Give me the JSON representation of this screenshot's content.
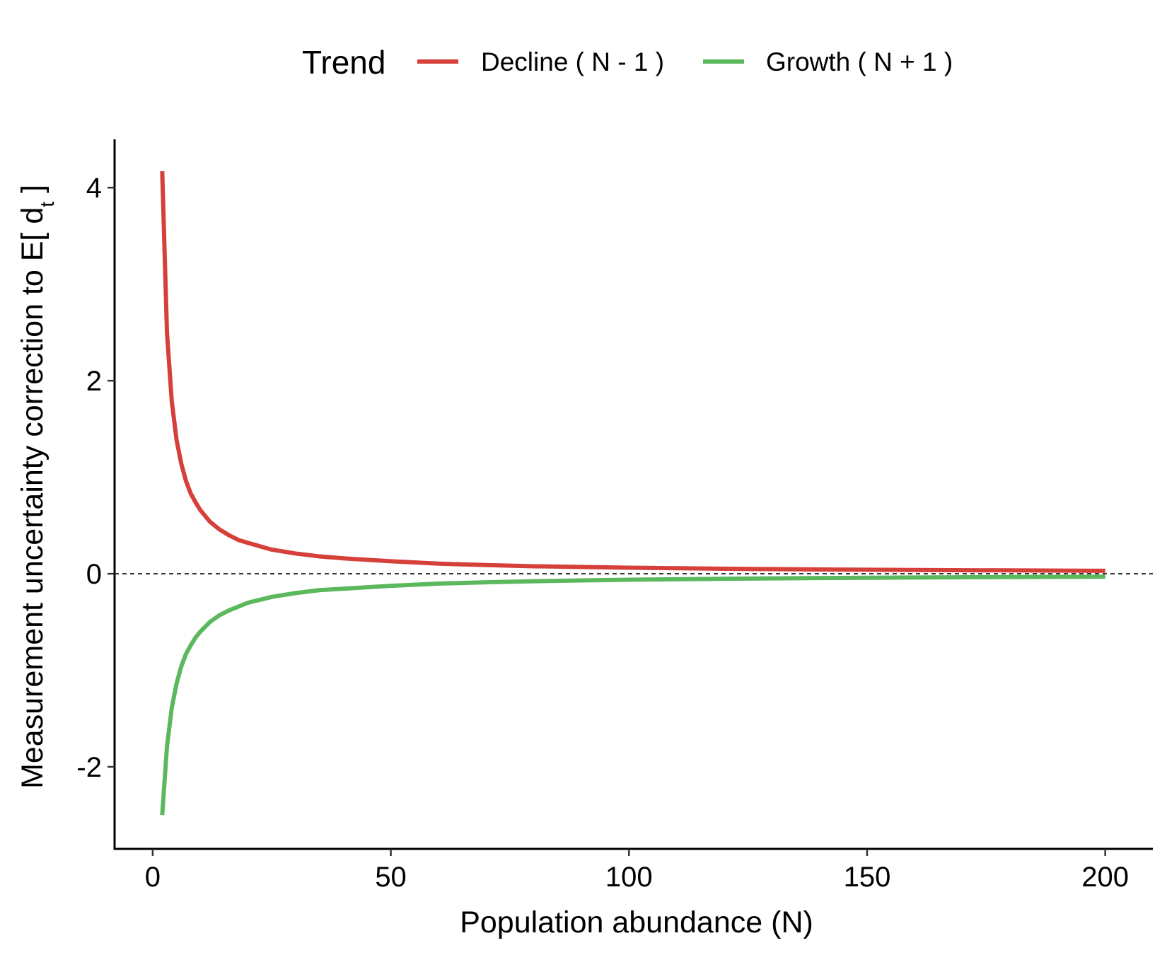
{
  "chart_data": {
    "type": "line",
    "title": "",
    "xlabel": "Population abundance (N)",
    "ylabel": "Measurement uncertainty correction to E[ d",
    "ylabel_subscript": "t",
    "ylabel_end": " ]",
    "xlim": [
      -8,
      210
    ],
    "ylim": [
      -2.85,
      4.5
    ],
    "x_ticks": [
      0,
      50,
      100,
      150,
      200
    ],
    "x_tick_labels": [
      "0",
      "50",
      "100",
      "150",
      "200"
    ],
    "y_ticks": [
      -2,
      0,
      2,
      4
    ],
    "y_tick_labels": [
      "-2",
      "0",
      "2",
      "4"
    ],
    "grid": false,
    "reference_line": {
      "y": 0,
      "style": "dashed"
    },
    "legend": {
      "title": "Trend",
      "position": "top"
    },
    "series": [
      {
        "name": "Decline ( N - 1 )",
        "color": "#d6403a",
        "x": [
          2,
          3,
          4,
          5,
          6,
          7,
          8,
          9,
          10,
          12,
          14,
          16,
          18,
          20,
          25,
          30,
          35,
          40,
          50,
          60,
          70,
          80,
          90,
          100,
          120,
          140,
          160,
          180,
          200
        ],
        "y": [
          4.17,
          2.5,
          1.79,
          1.39,
          1.14,
          0.96,
          0.83,
          0.74,
          0.66,
          0.54,
          0.46,
          0.4,
          0.35,
          0.32,
          0.25,
          0.21,
          0.18,
          0.16,
          0.13,
          0.105,
          0.09,
          0.078,
          0.07,
          0.063,
          0.052,
          0.045,
          0.039,
          0.035,
          0.031
        ]
      },
      {
        "name": "Growth ( N + 1 )",
        "color": "#5cb85c",
        "x": [
          2,
          3,
          4,
          5,
          6,
          7,
          8,
          9,
          10,
          12,
          14,
          16,
          18,
          20,
          25,
          30,
          35,
          40,
          50,
          60,
          70,
          80,
          90,
          100,
          120,
          140,
          160,
          180,
          200
        ],
        "y": [
          -2.5,
          -1.79,
          -1.39,
          -1.14,
          -0.96,
          -0.83,
          -0.74,
          -0.66,
          -0.6,
          -0.5,
          -0.43,
          -0.38,
          -0.34,
          -0.3,
          -0.24,
          -0.2,
          -0.17,
          -0.155,
          -0.125,
          -0.102,
          -0.088,
          -0.077,
          -0.069,
          -0.062,
          -0.052,
          -0.044,
          -0.039,
          -0.034,
          -0.031
        ]
      }
    ]
  }
}
